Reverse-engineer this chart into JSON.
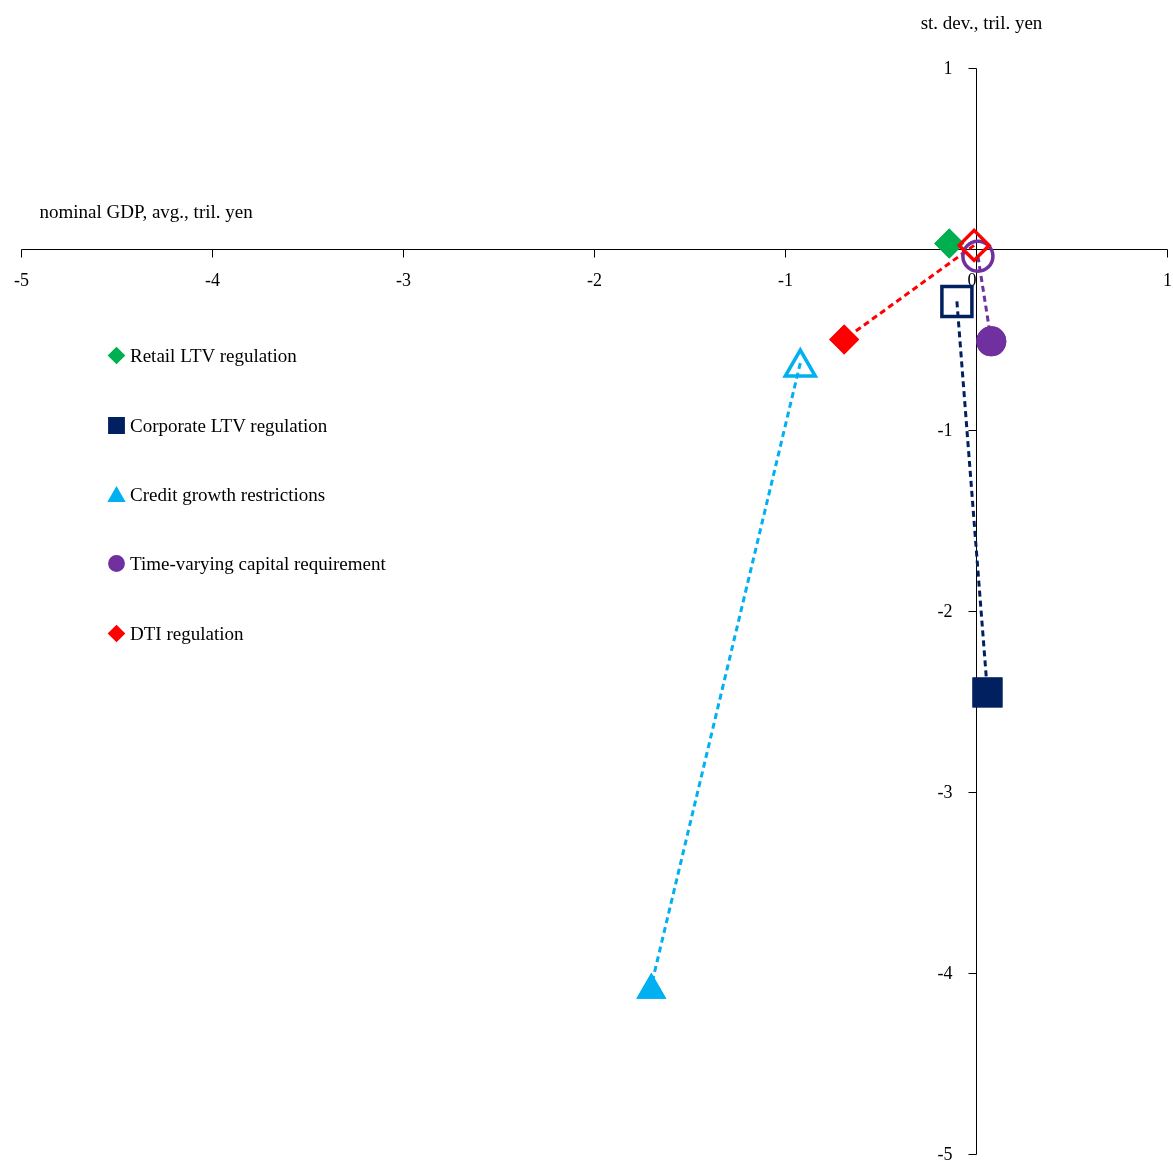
{
  "chart_data": {
    "type": "line",
    "xlabel": "nominal GDP, avg., tril. yen",
    "ylabel": "st. dev., tril. yen",
    "xlim": [
      -5,
      1
    ],
    "xticks": [
      -5,
      -4,
      -3,
      -2,
      -1,
      0,
      1
    ],
    "ylim": [
      -5,
      1
    ],
    "yticks": [
      -5,
      -4,
      -3,
      -2,
      -1,
      {
        "value": 0,
        "label": null
      },
      1
    ],
    "grid": false,
    "legend": "top left",
    "line_style": "dashed",
    "series": [
      {
        "name": "Retail LTV regulation",
        "color": "#00b050",
        "marker": "diamond",
        "x": [
          -0.14
        ],
        "values": [
          0.03
        ]
      },
      {
        "name": "Corporate LTV regulation",
        "color": "#002060",
        "marker": "square",
        "x": [
          -0.1,
          0.06
        ],
        "values": [
          -0.29,
          -2.45
        ]
      },
      {
        "name": "Credit growth restrictions",
        "color": "#00b0f0",
        "marker": "triangle",
        "x": [
          -0.92,
          -1.7
        ],
        "values": [
          -0.63,
          -4.07
        ]
      },
      {
        "name": "Time-varying capital requirement",
        "color": "#7030a0",
        "marker": "circle",
        "x": [
          0.01,
          0.08
        ],
        "values": [
          -0.04,
          -0.51
        ]
      },
      {
        "name": "DTI regulation",
        "color": "#ff0000",
        "marker": "diamond",
        "x": [
          -0.01,
          -0.69
        ],
        "values": [
          0.02,
          -0.5
        ]
      }
    ]
  }
}
